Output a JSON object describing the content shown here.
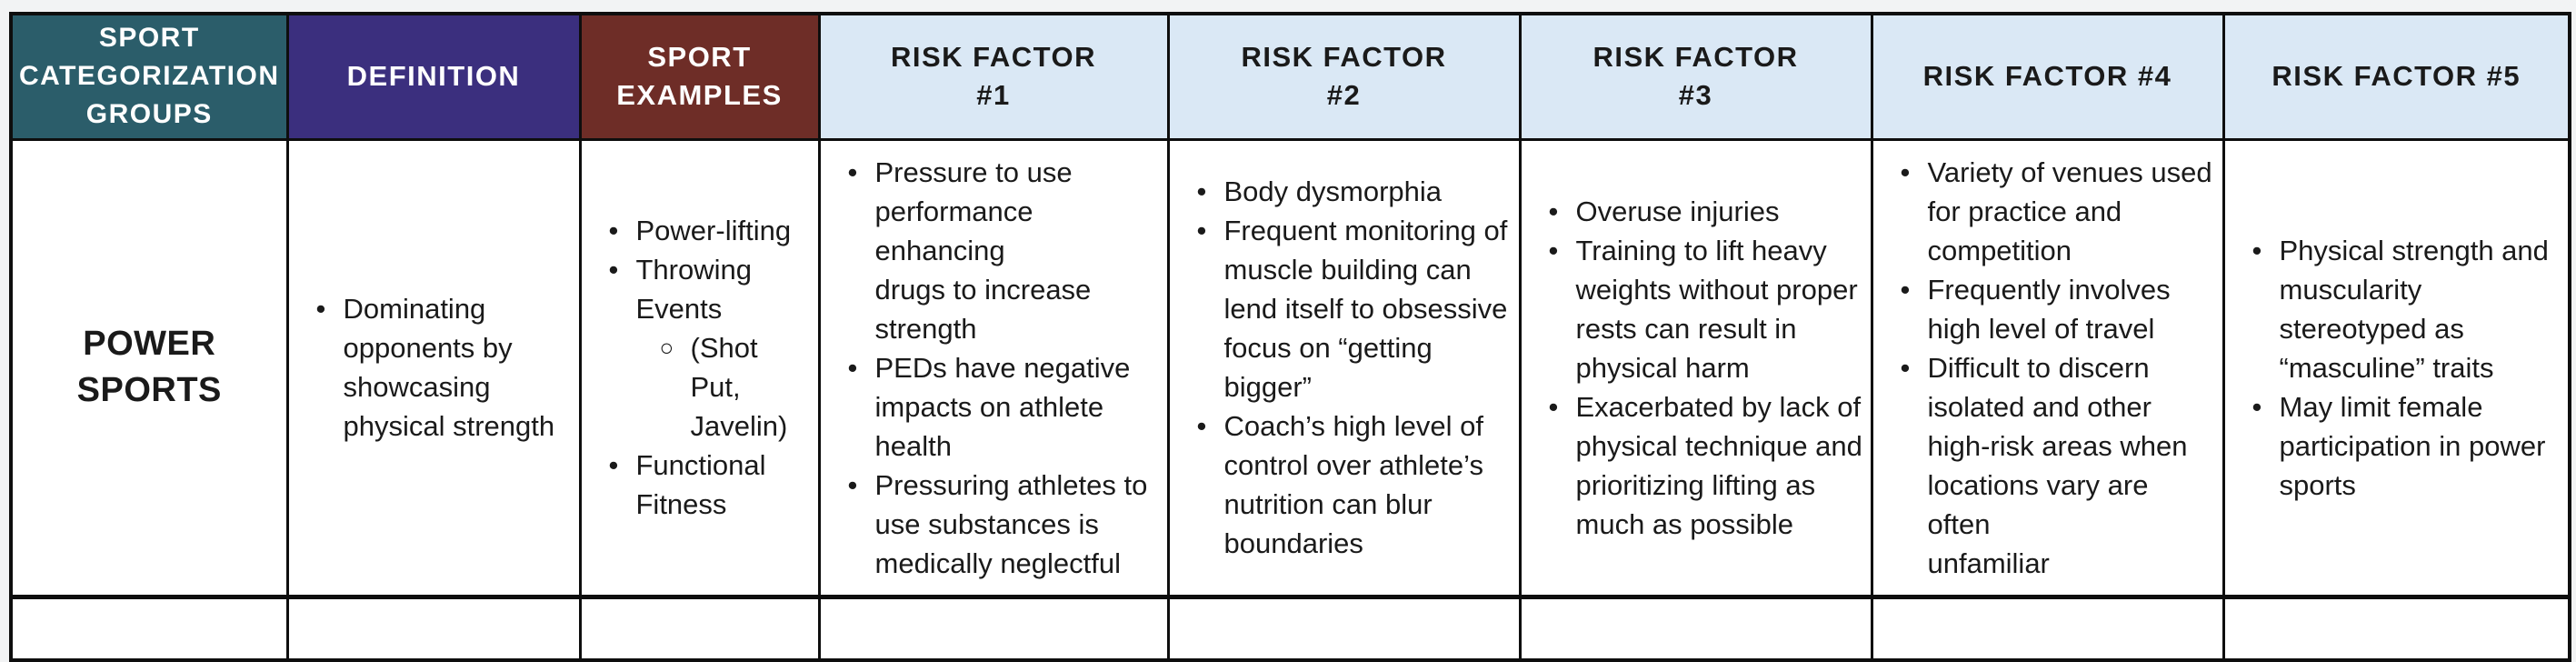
{
  "colors": {
    "header_teal": "#2B5D6A",
    "header_purple": "#3B2F7E",
    "header_red": "#6E2D27",
    "header_light_blue": "#DAE8F5",
    "border_black": "#0E0E0E",
    "page_background": "#F2F3F4",
    "body_text": "#1A1A1A"
  },
  "table": {
    "headers": [
      {
        "label": "SPORT\nCATEGORIZATION\nGROUPS"
      },
      {
        "label": "DEFINITION"
      },
      {
        "label": "SPORT\nEXAMPLES"
      },
      {
        "label": "RISK FACTOR\n#1"
      },
      {
        "label": "RISK FACTOR\n#2"
      },
      {
        "label": "RISK FACTOR\n#3"
      },
      {
        "label": "RISK FACTOR #4"
      },
      {
        "label": "RISK FACTOR #5"
      }
    ],
    "row": {
      "group": "POWER\nSPORTS",
      "definition": [
        {
          "level": 1,
          "text": "Dominating\nopponents by\nshowcasing\nphysical strength"
        }
      ],
      "sport_examples": [
        {
          "level": 1,
          "text": "Power-lifting"
        },
        {
          "level": 1,
          "text": "Throwing\nEvents"
        },
        {
          "level": 2,
          "text": "(Shot Put,\nJavelin)"
        },
        {
          "level": 1,
          "text": "Functional\nFitness"
        }
      ],
      "risk_factor_1": [
        {
          "level": 1,
          "text": "Pressure to use\nperformance enhancing\ndrugs to increase\nstrength"
        },
        {
          "level": 1,
          "text": "PEDs have negative\nimpacts on athlete\nhealth"
        },
        {
          "level": 1,
          "text": "Pressuring athletes to\nuse substances is\nmedically neglectful"
        }
      ],
      "risk_factor_2": [
        {
          "level": 1,
          "text": "Body dysmorphia"
        },
        {
          "level": 1,
          "text": "Frequent monitoring of\nmuscle building can\nlend itself to obsessive\nfocus on “getting\nbigger”"
        },
        {
          "level": 1,
          "text": "Coach’s high level of\ncontrol over athlete’s\nnutrition can blur\nboundaries"
        }
      ],
      "risk_factor_3": [
        {
          "level": 1,
          "text": "Overuse injuries"
        },
        {
          "level": 1,
          "text": "Training to lift heavy\nweights without proper\nrests can result in\nphysical harm"
        },
        {
          "level": 1,
          "text": "Exacerbated by lack of\nphysical technique and\nprioritizing lifting as\nmuch as possible"
        }
      ],
      "risk_factor_4": [
        {
          "level": 1,
          "text": "Variety of venues used\nfor practice and\ncompetition"
        },
        {
          "level": 1,
          "text": "Frequently involves\nhigh level of travel"
        },
        {
          "level": 1,
          "text": "Difficult to discern\nisolated and other\nhigh-risk areas when\nlocations vary are often\nunfamiliar"
        }
      ],
      "risk_factor_5": [
        {
          "level": 1,
          "text": "Physical strength and\nmuscularity\nstereotyped as\n“masculine” traits"
        },
        {
          "level": 1,
          "text": "May limit female\nparticipation in power\nsports"
        }
      ]
    }
  }
}
